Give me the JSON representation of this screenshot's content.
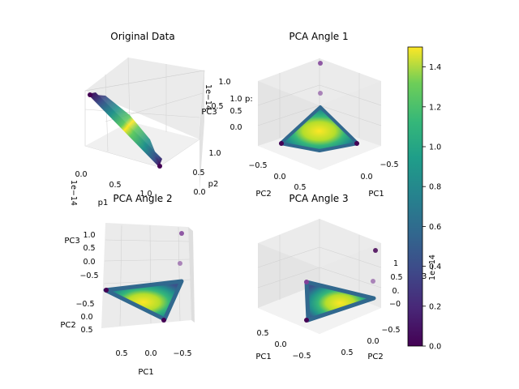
{
  "chart_data": [
    {
      "type": "scatter3d",
      "title": "Original Data",
      "xlabel": "p1",
      "ylabel": "p2",
      "zlabel": "PC3",
      "x_ticks": [
        "0.0",
        "0.5",
        "1.0"
      ],
      "y_ticks": [
        "0.0",
        "0.5",
        "1.0"
      ],
      "z_ticks": [
        "0.5",
        "1.0"
      ],
      "z_offset_text": "1e−14",
      "x_offset_text": "1e−14",
      "points": {
        "shape": "triangle",
        "vertices": [
          [
            1,
            0,
            0
          ],
          [
            0,
            1,
            0
          ],
          [
            0,
            0,
            1
          ]
        ],
        "color_range": [
          0.0,
          1.5
        ]
      }
    },
    {
      "type": "scatter3d",
      "title": "PCA Angle 1",
      "xlabel": "PC1",
      "ylabel": "PC2",
      "zlabel": "PC3",
      "x_ticks": [
        "0.0",
        "−0.5"
      ],
      "y_ticks": [
        "−0.5",
        "0.0",
        "0.5"
      ],
      "z_ticks": [
        "0.0",
        "0.5",
        "1.0"
      ],
      "z_label_partial": "p:",
      "outliers_z": [
        0.8,
        1.2
      ]
    },
    {
      "type": "scatter3d",
      "title": "PCA Angle 2",
      "xlabel": "PC1",
      "ylabel": "PC2",
      "zlabel": "PC3",
      "x_ticks": [
        "0.5",
        "0.0",
        "−0.5"
      ],
      "y_ticks": [
        "−0.5",
        "0.0",
        "0.5"
      ],
      "z_ticks": [
        "1.0",
        "0.5",
        "0.0",
        "−0.5"
      ],
      "outliers_z": [
        0.8,
        1.2
      ]
    },
    {
      "type": "scatter3d",
      "title": "PCA Angle 3",
      "xlabel": "PC1",
      "ylabel": "PC2",
      "zlabel": "PC3",
      "x_ticks": [
        "0.5",
        "0.0",
        "−0.5"
      ],
      "y_ticks": [
        "0.0",
        "0.5",
        "−0.5"
      ],
      "z_ticks": [
        "1",
        "0.5",
        "0.",
        "−0"
      ],
      "outliers_z": [
        0.8,
        1.2
      ]
    }
  ],
  "colorbar": {
    "colormap": "viridis",
    "range": [
      0.0,
      1.5
    ],
    "ticks": [
      "0.0",
      "0.2",
      "0.4",
      "0.6",
      "0.8",
      "1.0",
      "1.2",
      "1.4"
    ],
    "tick_values": [
      0.0,
      0.2,
      0.4,
      0.6,
      0.8,
      1.0,
      1.2,
      1.4
    ],
    "offset_text": "1e−14"
  },
  "colors": {
    "low": "#440154",
    "mid": "#21918c",
    "high": "#fde725",
    "pane_light": "#f2f2f2",
    "pane_mid": "#e6e6e6",
    "pane_dark": "#ebebeb",
    "grid": "#d0d0d0",
    "outlier": "#7f3f98"
  }
}
